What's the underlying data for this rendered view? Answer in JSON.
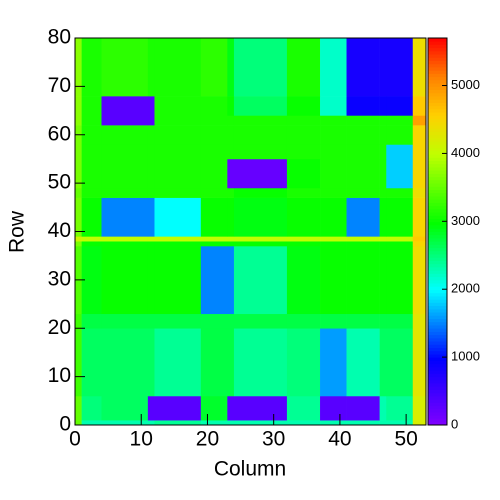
{
  "chart_data": {
    "type": "heatmap",
    "x_label": "Column",
    "y_label": "Row",
    "xlim": [
      0,
      53
    ],
    "ylim": [
      0,
      80
    ],
    "zlim": [
      0,
      5700
    ],
    "xticks": [
      0,
      10,
      20,
      30,
      40,
      50
    ],
    "yticks": [
      0,
      10,
      20,
      30,
      40,
      50,
      60,
      70,
      80
    ],
    "zticks": [
      0,
      1000,
      2000,
      3000,
      4000,
      5000
    ],
    "colorscale": [
      [
        0,
        "#8000ff"
      ],
      [
        0.17,
        "#0000ff"
      ],
      [
        0.35,
        "#00ffff"
      ],
      [
        0.52,
        "#00ff00"
      ],
      [
        0.7,
        "#c0ff00"
      ],
      [
        0.8,
        "#ffd000"
      ],
      [
        0.9,
        "#ff8000"
      ],
      [
        1,
        "#ff0000"
      ]
    ],
    "xbins": [
      0,
      1,
      4,
      11,
      12,
      19,
      23,
      24,
      32,
      37,
      41,
      46,
      47,
      51,
      53
    ],
    "ybins": [
      0,
      1,
      6,
      20,
      23,
      37,
      38,
      39,
      47,
      49,
      55,
      58,
      62,
      64,
      68,
      80
    ],
    "values": [
      [
        3500,
        2300,
        2300,
        2300,
        2400,
        2300,
        2300,
        2300,
        2300,
        2300,
        2300,
        2300,
        2300,
        4200
      ],
      [
        3500,
        2500,
        2600,
        300,
        300,
        2800,
        300,
        300,
        2400,
        300,
        300,
        2300,
        2400,
        4200
      ],
      [
        3300,
        2600,
        2600,
        2600,
        2400,
        2700,
        2700,
        2400,
        2500,
        1600,
        2300,
        2600,
        2600,
        4300
      ],
      [
        3300,
        2700,
        2700,
        2700,
        2700,
        2700,
        2700,
        2700,
        2700,
        2700,
        2700,
        2700,
        2700,
        4300
      ],
      [
        3400,
        2900,
        3000,
        3000,
        3000,
        1500,
        1500,
        2400,
        2900,
        3000,
        3000,
        3000,
        3000,
        4400
      ],
      [
        3600,
        3000,
        3000,
        3000,
        3000,
        3000,
        3000,
        3000,
        3000,
        3000,
        3000,
        3000,
        3000,
        4500
      ],
      [
        4100,
        4000,
        4000,
        4000,
        4000,
        4000,
        4000,
        4000,
        4000,
        4000,
        4000,
        4000,
        4000,
        4600
      ],
      [
        3600,
        3000,
        1500,
        1500,
        2000,
        3000,
        3000,
        2900,
        3000,
        3000,
        1500,
        3000,
        3000,
        4500
      ],
      [
        3500,
        3100,
        3100,
        3100,
        3100,
        3100,
        3100,
        3000,
        3100,
        3100,
        3100,
        3100,
        3100,
        4400
      ],
      [
        3600,
        3100,
        3100,
        3100,
        3100,
        3100,
        200,
        200,
        3000,
        3100,
        3100,
        3100,
        1800,
        4500
      ],
      [
        3600,
        3100,
        3100,
        3100,
        3100,
        3100,
        3100,
        3100,
        3100,
        3100,
        3100,
        3100,
        1800,
        4500
      ],
      [
        3600,
        3100,
        3100,
        3100,
        3100,
        3100,
        3100,
        3100,
        3100,
        3100,
        3100,
        3100,
        3100,
        4500
      ],
      [
        3700,
        3100,
        300,
        300,
        3100,
        3100,
        3100,
        3100,
        3100,
        3100,
        3100,
        3100,
        3100,
        4900
      ],
      [
        3700,
        3100,
        300,
        300,
        3100,
        3100,
        3000,
        2600,
        3000,
        2200,
        900,
        900,
        900,
        4600
      ],
      [
        3700,
        3100,
        3200,
        3100,
        3100,
        3200,
        2900,
        2500,
        3100,
        2200,
        800,
        800,
        800,
        4400
      ]
    ]
  }
}
